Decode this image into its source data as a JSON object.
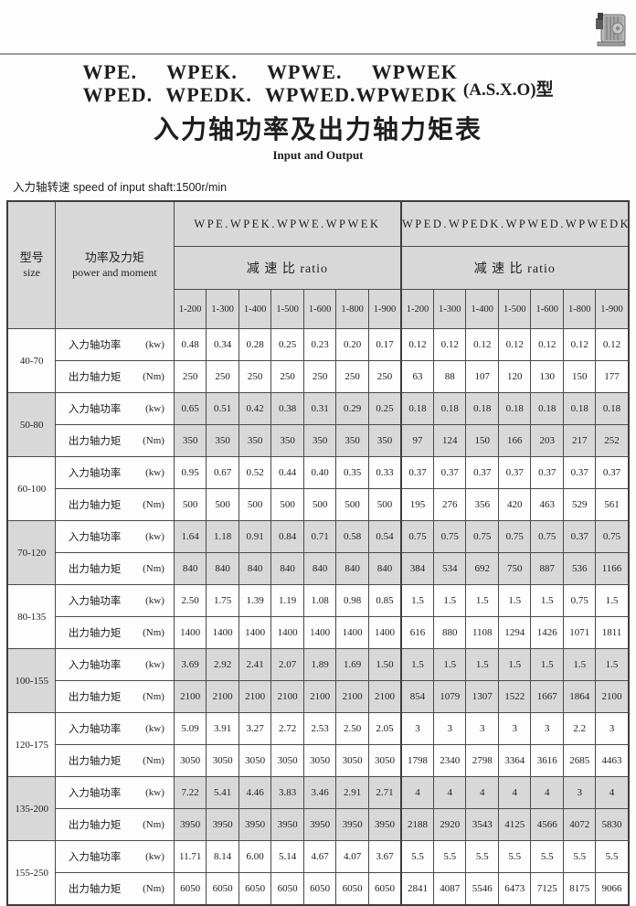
{
  "header": {
    "models_line1": "WPE. WPEK. WPWE. WPWEK",
    "models_line2": "WPED. WPEDK. WPWED.WPWEDK",
    "type_label": "(A.S.X.O)型",
    "cn_title": "入力轴功率及出力轴力矩表",
    "en_title": "Input and Output",
    "speed_note": "入力轴转速  speed of input shaft:1500r/min"
  },
  "icons": {
    "gearbox_photo": "worm-gear-reducer-photo"
  },
  "colors": {
    "header_fill": "#d8d8d8",
    "shaded_row_fill": "#d8d8d8",
    "border": "#4a4a4a",
    "rule": "#9a9a9a"
  },
  "table": {
    "size_header": {
      "cn": "型号",
      "en": "size"
    },
    "moment_header": {
      "cn": "功率及力矩",
      "en": "power and moment"
    },
    "row_labels": {
      "power": "入力轴功率",
      "power_unit": "(kw)",
      "torque": "出力轴力矩",
      "torque_unit": "(Nm)"
    },
    "group1": {
      "name": "WPE.WPEK.WPWE.WPWEK",
      "ratio_label": "减 速 比 ratio",
      "ratios": [
        "1-200",
        "1-300",
        "1-400",
        "1-500",
        "1-600",
        "1-800",
        "1-900"
      ]
    },
    "group2": {
      "name": "WPED.WPEDK.WPWED.WPWEDK",
      "ratio_label": "减 速 比 ratio",
      "ratios": [
        "1-200",
        "1-300",
        "1-400",
        "1-500",
        "1-600",
        "1-800",
        "1-900"
      ]
    },
    "rows": [
      {
        "size": "40-70",
        "shaded": false,
        "power1": [
          "0.48",
          "0.34",
          "0.28",
          "0.25",
          "0.23",
          "0.20",
          "0.17"
        ],
        "torque1": [
          "250",
          "250",
          "250",
          "250",
          "250",
          "250",
          "250"
        ],
        "power2": [
          "0.12",
          "0.12",
          "0.12",
          "0.12",
          "0.12",
          "0.12",
          "0.12"
        ],
        "torque2": [
          "63",
          "88",
          "107",
          "120",
          "130",
          "150",
          "177"
        ]
      },
      {
        "size": "50-80",
        "shaded": true,
        "power1": [
          "0.65",
          "0.51",
          "0.42",
          "0.38",
          "0.31",
          "0.29",
          "0.25"
        ],
        "torque1": [
          "350",
          "350",
          "350",
          "350",
          "350",
          "350",
          "350"
        ],
        "power2": [
          "0.18",
          "0.18",
          "0.18",
          "0.18",
          "0.18",
          "0.18",
          "0.18"
        ],
        "torque2": [
          "97",
          "124",
          "150",
          "166",
          "203",
          "217",
          "252"
        ]
      },
      {
        "size": "60-100",
        "shaded": false,
        "power1": [
          "0.95",
          "0.67",
          "0.52",
          "0.44",
          "0.40",
          "0.35",
          "0.33"
        ],
        "torque1": [
          "500",
          "500",
          "500",
          "500",
          "500",
          "500",
          "500"
        ],
        "power2": [
          "0.37",
          "0.37",
          "0.37",
          "0.37",
          "0.37",
          "0.37",
          "0.37"
        ],
        "torque2": [
          "195",
          "276",
          "356",
          "420",
          "463",
          "529",
          "561"
        ]
      },
      {
        "size": "70-120",
        "shaded": true,
        "power1": [
          "1.64",
          "1.18",
          "0.91",
          "0.84",
          "0.71",
          "0.58",
          "0.54"
        ],
        "torque1": [
          "840",
          "840",
          "840",
          "840",
          "840",
          "840",
          "840"
        ],
        "power2": [
          "0.75",
          "0.75",
          "0.75",
          "0.75",
          "0.75",
          "0.37",
          "0.75"
        ],
        "torque2": [
          "384",
          "534",
          "692",
          "750",
          "887",
          "536",
          "1166"
        ]
      },
      {
        "size": "80-135",
        "shaded": false,
        "power1": [
          "2.50",
          "1.75",
          "1.39",
          "1.19",
          "1.08",
          "0.98",
          "0.85"
        ],
        "torque1": [
          "1400",
          "1400",
          "1400",
          "1400",
          "1400",
          "1400",
          "1400"
        ],
        "power2": [
          "1.5",
          "1.5",
          "1.5",
          "1.5",
          "1.5",
          "0.75",
          "1.5"
        ],
        "torque2": [
          "616",
          "880",
          "1108",
          "1294",
          "1426",
          "1071",
          "1811"
        ]
      },
      {
        "size": "100-155",
        "shaded": true,
        "power1": [
          "3.69",
          "2.92",
          "2.41",
          "2.07",
          "1.89",
          "1.69",
          "1.50"
        ],
        "torque1": [
          "2100",
          "2100",
          "2100",
          "2100",
          "2100",
          "2100",
          "2100"
        ],
        "power2": [
          "1.5",
          "1.5",
          "1.5",
          "1.5",
          "1.5",
          "1.5",
          "1.5"
        ],
        "torque2": [
          "854",
          "1079",
          "1307",
          "1522",
          "1667",
          "1864",
          "2100"
        ]
      },
      {
        "size": "120-175",
        "shaded": false,
        "power1": [
          "5.09",
          "3.91",
          "3.27",
          "2.72",
          "2.53",
          "2.50",
          "2.05"
        ],
        "torque1": [
          "3050",
          "3050",
          "3050",
          "3050",
          "3050",
          "3050",
          "3050"
        ],
        "power2": [
          "3",
          "3",
          "3",
          "3",
          "3",
          "2.2",
          "3"
        ],
        "torque2": [
          "1798",
          "2340",
          "2798",
          "3364",
          "3616",
          "2685",
          "4463"
        ]
      },
      {
        "size": "135-200",
        "shaded": true,
        "power1": [
          "7.22",
          "5.41",
          "4.46",
          "3.83",
          "3.46",
          "2.91",
          "2.71"
        ],
        "torque1": [
          "3950",
          "3950",
          "3950",
          "3950",
          "3950",
          "3950",
          "3950"
        ],
        "power2": [
          "4",
          "4",
          "4",
          "4",
          "4",
          "3",
          "4"
        ],
        "torque2": [
          "2188",
          "2920",
          "3543",
          "4125",
          "4566",
          "4072",
          "5830"
        ]
      },
      {
        "size": "155-250",
        "shaded": false,
        "power1": [
          "11.71",
          "8.14",
          "6.00",
          "5.14",
          "4.67",
          "4.07",
          "3.67"
        ],
        "torque1": [
          "6050",
          "6050",
          "6050",
          "6050",
          "6050",
          "6050",
          "6050"
        ],
        "power2": [
          "5.5",
          "5.5",
          "5.5",
          "5.5",
          "5.5",
          "5.5",
          "5.5"
        ],
        "torque2": [
          "2841",
          "4087",
          "5546",
          "6473",
          "7125",
          "8175",
          "9066"
        ]
      }
    ]
  }
}
